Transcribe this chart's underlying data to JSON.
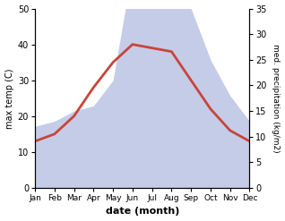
{
  "months": [
    "Jan",
    "Feb",
    "Mar",
    "Apr",
    "May",
    "Jun",
    "Jul",
    "Aug",
    "Sep",
    "Oct",
    "Nov",
    "Dec"
  ],
  "temperature": [
    13,
    15,
    20,
    28,
    35,
    40,
    39,
    38,
    30,
    22,
    16,
    13
  ],
  "precipitation": [
    12,
    13,
    15,
    16,
    21,
    43,
    39,
    39,
    35,
    25,
    18,
    13
  ],
  "temp_color": "#c8453a",
  "precip_fill_color": "#c5cce8",
  "temp_ylim": [
    0,
    50
  ],
  "precip_ylim": [
    0,
    35
  ],
  "temp_yticks": [
    0,
    10,
    20,
    30,
    40,
    50
  ],
  "precip_yticks": [
    0,
    5,
    10,
    15,
    20,
    25,
    30,
    35
  ],
  "xlabel": "date (month)",
  "ylabel_left": "max temp (C)",
  "ylabel_right": "med. precipitation (kg/m2)",
  "background_color": "#ffffff",
  "line_width": 2.0
}
